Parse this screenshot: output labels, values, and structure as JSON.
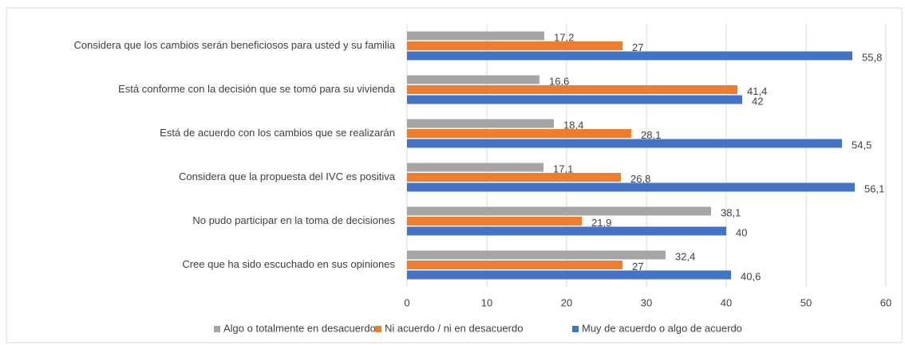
{
  "chart_data": {
    "type": "bar",
    "orientation": "horizontal",
    "categories": [
      "Considera que los cambios serán beneficiosos para usted y su familia",
      "Está conforme con la decisión que se tomó para su vivienda",
      "Está de acuerdo con los cambios que se realizarán",
      "Considera que la propuesta del IVC es positiva",
      "No pudo participar en la toma de decisiones",
      "Cree que ha sido escuchado en sus opiniones"
    ],
    "series": [
      {
        "name": "Algo o totalmente en desacuerdo",
        "color": "#a5a5a5",
        "values": [
          17.2,
          16.6,
          18.4,
          17.1,
          38.1,
          32.4
        ],
        "value_labels": [
          "17,2",
          "16,6",
          "18,4",
          "17,1",
          "38,1",
          "32,4"
        ]
      },
      {
        "name": "Ni acuerdo / ni en desacuerdo",
        "color": "#ed7d31",
        "values": [
          27,
          41.4,
          28.1,
          26.8,
          21.9,
          27
        ],
        "value_labels": [
          "27",
          "41,4",
          "28,1",
          "26,8",
          "21,9",
          "27"
        ]
      },
      {
        "name": "Muy de acuerdo o algo de acuerdo",
        "color": "#4472c4",
        "values": [
          55.8,
          42,
          54.5,
          56.1,
          40,
          40.6
        ],
        "value_labels": [
          "55,8",
          "42",
          "54,5",
          "56,1",
          "40",
          "40,6"
        ]
      }
    ],
    "xlim": [
      0,
      60
    ],
    "xticks": [
      0,
      10,
      20,
      30,
      40,
      50,
      60
    ],
    "grid": true,
    "legend": "bottom"
  }
}
